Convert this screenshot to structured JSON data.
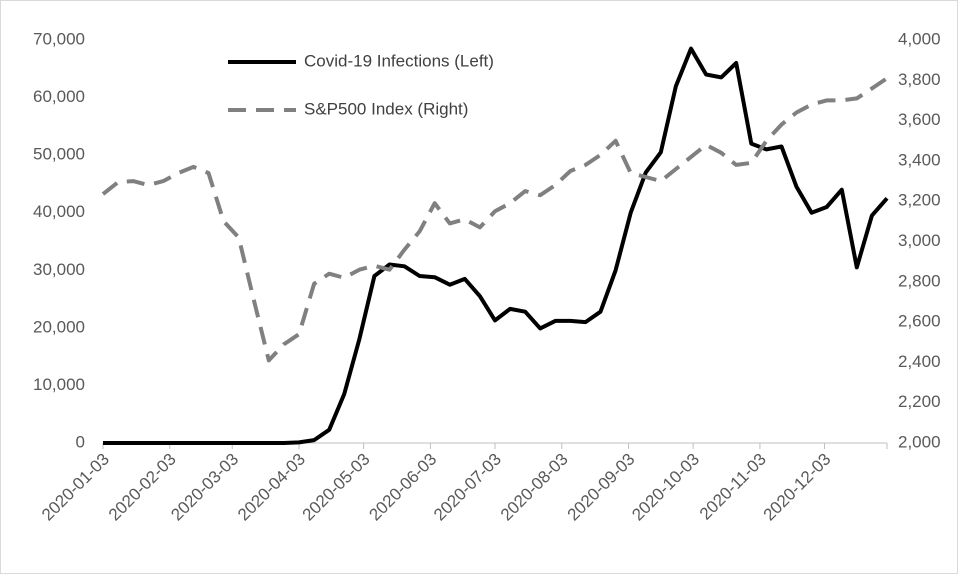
{
  "chart_data": {
    "type": "line",
    "x": [
      "2020-01-03",
      "2020-01-10",
      "2020-01-17",
      "2020-01-24",
      "2020-01-31",
      "2020-02-07",
      "2020-02-14",
      "2020-02-21",
      "2020-02-28",
      "2020-03-06",
      "2020-03-13",
      "2020-03-20",
      "2020-03-27",
      "2020-04-03",
      "2020-04-10",
      "2020-04-17",
      "2020-04-24",
      "2020-05-01",
      "2020-05-08",
      "2020-05-15",
      "2020-05-22",
      "2020-05-29",
      "2020-06-05",
      "2020-06-12",
      "2020-06-19",
      "2020-06-26",
      "2020-07-03",
      "2020-07-10",
      "2020-07-17",
      "2020-07-24",
      "2020-07-31",
      "2020-08-07",
      "2020-08-14",
      "2020-08-21",
      "2020-08-28",
      "2020-09-04",
      "2020-09-11",
      "2020-09-18",
      "2020-09-25",
      "2020-10-02",
      "2020-10-09",
      "2020-10-16",
      "2020-10-23",
      "2020-10-30",
      "2020-11-06",
      "2020-11-13",
      "2020-11-20",
      "2020-11-27",
      "2020-12-04",
      "2020-12-11",
      "2020-12-18",
      "2020-12-25",
      "2021-01-01"
    ],
    "series": [
      {
        "name": "Covid-19 Infections (Left)",
        "color": "#000000",
        "style": "solid",
        "axis": "y",
        "values": [
          0,
          0,
          0,
          0,
          0,
          0,
          0,
          0,
          0,
          0,
          0,
          0,
          0,
          100,
          500,
          2300,
          8500,
          18000,
          29000,
          31000,
          30700,
          29000,
          28800,
          27500,
          28500,
          25500,
          21300,
          23300,
          22800,
          19900,
          21200,
          21200,
          21000,
          22800,
          30000,
          40000,
          47000,
          50500,
          62000,
          68500,
          64000,
          63500,
          66000,
          52000,
          51000,
          51500,
          44500,
          40000,
          41000,
          44000,
          30500,
          39500,
          42500
        ]
      },
      {
        "name": "S&P500 Index (Right)",
        "color": "#808080",
        "style": "dashed",
        "axis": "y2",
        "values": [
          3235,
          3295,
          3300,
          3280,
          3300,
          3340,
          3370,
          3340,
          3100,
          3020,
          2710,
          2410,
          2490,
          2540,
          2790,
          2840,
          2820,
          2860,
          2880,
          2860,
          2960,
          3050,
          3190,
          3090,
          3110,
          3070,
          3150,
          3190,
          3250,
          3230,
          3280,
          3350,
          3380,
          3430,
          3500,
          3340,
          3320,
          3300,
          3360,
          3420,
          3480,
          3440,
          3380,
          3390,
          3500,
          3580,
          3640,
          3680,
          3700,
          3700,
          3710,
          3760,
          3810
        ]
      }
    ],
    "xlim": [
      "2020-01-03",
      "2021-01-01"
    ],
    "xticks": [
      "2020-01-03",
      "2020-02-03",
      "2020-03-03",
      "2020-04-03",
      "2020-05-03",
      "2020-06-03",
      "2020-07-03",
      "2020-08-03",
      "2020-09-03",
      "2020-10-03",
      "2020-11-03",
      "2020-12-03"
    ],
    "ylim": [
      0,
      70000
    ],
    "yticks": [
      0,
      {
        "value": 10000,
        "label": "10,000"
      },
      {
        "value": 20000,
        "label": "20,000"
      },
      {
        "value": 30000,
        "label": "30,000"
      },
      {
        "value": 40000,
        "label": "40,000"
      },
      {
        "value": 50000,
        "label": "50,000"
      },
      {
        "value": 60000,
        "label": "60,000"
      },
      {
        "value": 70000,
        "label": "70,000"
      }
    ],
    "y2lim": [
      2000,
      4000
    ],
    "y2ticks": [
      {
        "value": 2000,
        "label": "2,000"
      },
      {
        "value": 2200,
        "label": "2,200"
      },
      {
        "value": 2400,
        "label": "2,400"
      },
      {
        "value": 2600,
        "label": "2,600"
      },
      {
        "value": 2800,
        "label": "2,800"
      },
      {
        "value": 3000,
        "label": "3,000"
      },
      {
        "value": 3200,
        "label": "3,200"
      },
      {
        "value": 3400,
        "label": "3,400"
      },
      {
        "value": 3600,
        "label": "3,600"
      },
      {
        "value": 3800,
        "label": "3,800"
      },
      {
        "value": 4000,
        "label": "4,000"
      }
    ],
    "legend": "top-left",
    "grid": false
  }
}
